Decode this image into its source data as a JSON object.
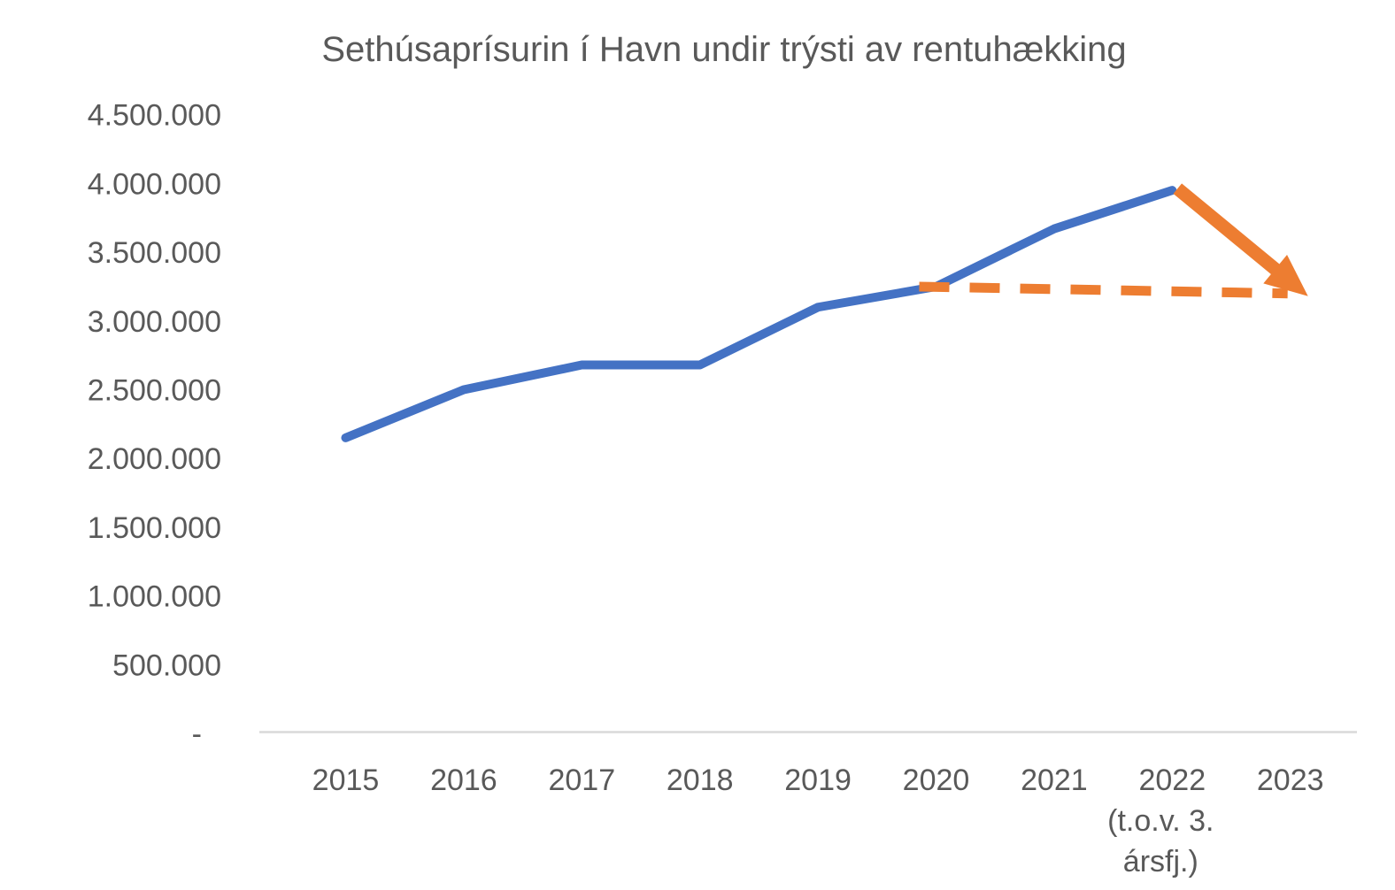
{
  "colors": {
    "actual_line": "#4472C4",
    "projection_line": "#ED7D31",
    "arrow": "#ED7D31",
    "axis_line": "#D9D9D9",
    "text": "#595959",
    "background": "#FFFFFF"
  },
  "chart_data": {
    "type": "line",
    "title": "Sethúsaprísurin í Havn undir trýsti av rentuhækking",
    "xlabel": "",
    "ylabel": "",
    "legend": "none",
    "grid": false,
    "categories": [
      "2015",
      "2016",
      "2017",
      "2018",
      "2019",
      "2020",
      "2021",
      "2022",
      "2023"
    ],
    "x_note": {
      "category": "2022",
      "lines": [
        "(t.o.v. 3.",
        "ársfj.)"
      ]
    },
    "y_axis": {
      "min": 0,
      "max": 4500000,
      "tick_step": 500000,
      "tick_labels": [
        "-",
        "500.000",
        "1.000.000",
        "1.500.000",
        "2.000.000",
        "2.500.000",
        "3.000.000",
        "3.500.000",
        "4.000.000",
        "4.500.000"
      ]
    },
    "series": [
      {
        "id": "actual-prices",
        "style": "solid",
        "color": "#4472C4",
        "values": [
          2150000,
          2500000,
          2680000,
          2680000,
          3100000,
          3250000,
          3670000,
          3950000,
          null
        ]
      },
      {
        "id": "flat-projection",
        "style": "dashed",
        "color": "#ED7D31",
        "values": [
          null,
          null,
          null,
          null,
          null,
          3250000,
          null,
          null,
          3200000
        ]
      }
    ],
    "annotations": [
      {
        "id": "decline-arrow",
        "type": "arrow",
        "color": "#ED7D31",
        "from": {
          "category": "2022",
          "value": 3950000
        },
        "to": {
          "category": "2023",
          "value": 3200000
        }
      }
    ]
  }
}
